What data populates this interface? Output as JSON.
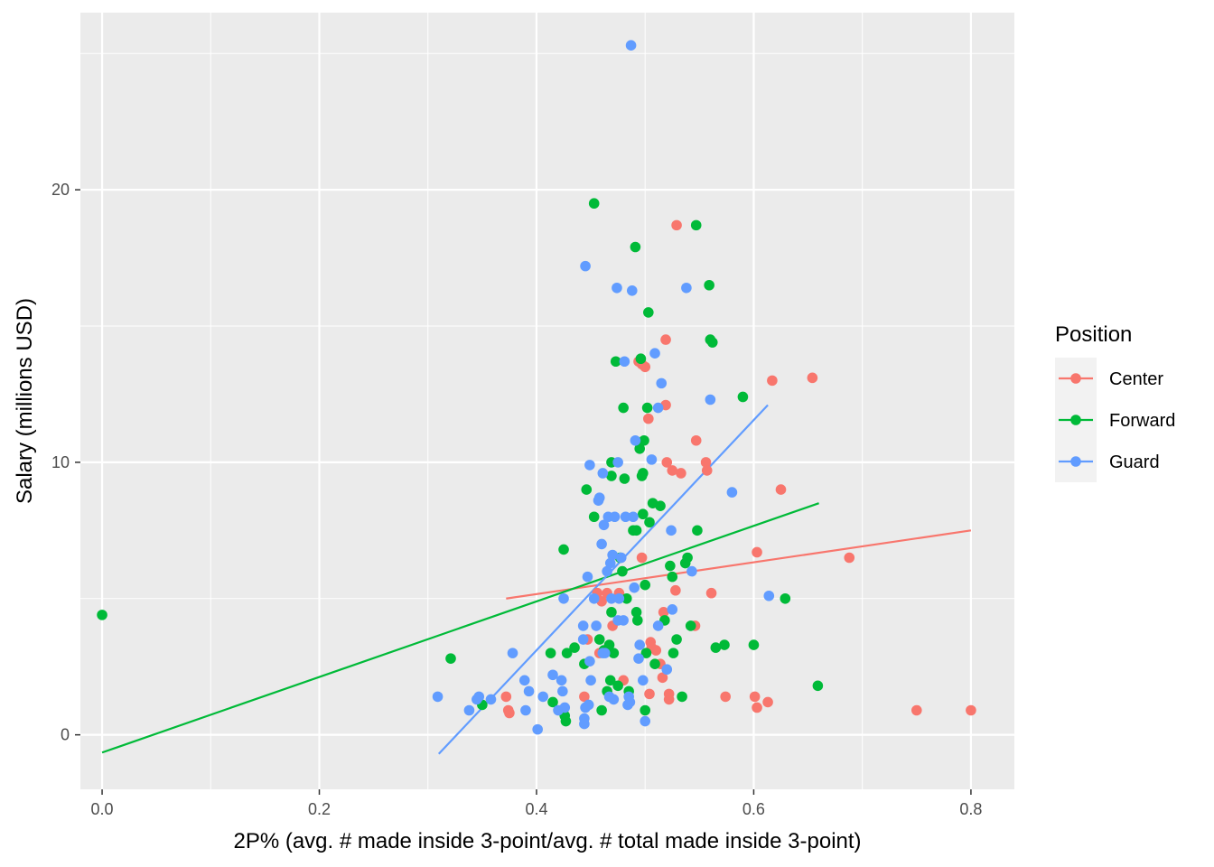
{
  "chart_data": {
    "type": "scatter",
    "title": "",
    "xlabel": "2P% (avg. # made inside 3-point/avg. # total made inside 3-point)",
    "ylabel": "Salary (millions USD)",
    "xlim": [
      -0.02,
      0.84
    ],
    "ylim": [
      -2,
      26.5
    ],
    "x_ticks": [
      0.0,
      0.2,
      0.4,
      0.6,
      0.8
    ],
    "x_tick_labels": [
      "0.0",
      "0.2",
      "0.4",
      "0.6",
      "0.8"
    ],
    "y_ticks": [
      0,
      10,
      20
    ],
    "y_tick_labels": [
      "0",
      "10",
      "20"
    ],
    "grid": true,
    "legend": {
      "title": "Position",
      "placement": "right"
    },
    "series": [
      {
        "name": "Center",
        "color": "#F8766D",
        "trend": [
          [
            0.372,
            5.0
          ],
          [
            0.8,
            7.5
          ]
        ],
        "points": [
          [
            0.372,
            1.4
          ],
          [
            0.374,
            0.9
          ],
          [
            0.375,
            0.8
          ],
          [
            0.422,
            0.9
          ],
          [
            0.444,
            1.4
          ],
          [
            0.447,
            3.5
          ],
          [
            0.456,
            5.2
          ],
          [
            0.458,
            3.0
          ],
          [
            0.46,
            4.9
          ],
          [
            0.465,
            5.2
          ],
          [
            0.47,
            4.0
          ],
          [
            0.476,
            5.2
          ],
          [
            0.48,
            2.0
          ],
          [
            0.494,
            13.7
          ],
          [
            0.497,
            13.6
          ],
          [
            0.497,
            6.5
          ],
          [
            0.5,
            13.5
          ],
          [
            0.503,
            11.6
          ],
          [
            0.505,
            3.4
          ],
          [
            0.506,
            3.2
          ],
          [
            0.51,
            3.1
          ],
          [
            0.514,
            2.6
          ],
          [
            0.516,
            2.1
          ],
          [
            0.517,
            4.5
          ],
          [
            0.519,
            14.5
          ],
          [
            0.519,
            12.1
          ],
          [
            0.52,
            10.0
          ],
          [
            0.522,
            1.5
          ],
          [
            0.522,
            1.3
          ],
          [
            0.525,
            9.7
          ],
          [
            0.528,
            5.3
          ],
          [
            0.529,
            18.7
          ],
          [
            0.533,
            9.6
          ],
          [
            0.546,
            4.0
          ],
          [
            0.547,
            10.8
          ],
          [
            0.556,
            10.0
          ],
          [
            0.557,
            9.7
          ],
          [
            0.561,
            5.2
          ],
          [
            0.574,
            1.4
          ],
          [
            0.601,
            1.4
          ],
          [
            0.603,
            1.0
          ],
          [
            0.603,
            6.7
          ],
          [
            0.613,
            1.2
          ],
          [
            0.617,
            13.0
          ],
          [
            0.625,
            9.0
          ],
          [
            0.654,
            13.1
          ],
          [
            0.688,
            6.5
          ],
          [
            0.75,
            0.9
          ],
          [
            0.8,
            0.9
          ],
          [
            0.504,
            1.5
          ]
        ]
      },
      {
        "name": "Forward",
        "color": "#00BA38",
        "trend": [
          [
            0.0,
            -0.65
          ],
          [
            0.66,
            8.5
          ]
        ],
        "points": [
          [
            0.0,
            4.4
          ],
          [
            0.321,
            2.8
          ],
          [
            0.35,
            1.1
          ],
          [
            0.413,
            3.0
          ],
          [
            0.415,
            1.2
          ],
          [
            0.425,
            6.8
          ],
          [
            0.426,
            0.7
          ],
          [
            0.427,
            0.5
          ],
          [
            0.428,
            3.0
          ],
          [
            0.435,
            3.2
          ],
          [
            0.444,
            2.6
          ],
          [
            0.446,
            9.0
          ],
          [
            0.453,
            19.5
          ],
          [
            0.453,
            8.0
          ],
          [
            0.458,
            3.5
          ],
          [
            0.46,
            0.9
          ],
          [
            0.462,
            3.1
          ],
          [
            0.465,
            1.6
          ],
          [
            0.467,
            3.3
          ],
          [
            0.468,
            2.0
          ],
          [
            0.469,
            9.5
          ],
          [
            0.469,
            10.0
          ],
          [
            0.469,
            4.5
          ],
          [
            0.471,
            3.0
          ],
          [
            0.473,
            13.7
          ],
          [
            0.475,
            1.8
          ],
          [
            0.477,
            6.5
          ],
          [
            0.479,
            6.0
          ],
          [
            0.48,
            12.0
          ],
          [
            0.481,
            9.4
          ],
          [
            0.483,
            5.0
          ],
          [
            0.485,
            1.6
          ],
          [
            0.489,
            7.5
          ],
          [
            0.491,
            17.9
          ],
          [
            0.492,
            7.5
          ],
          [
            0.492,
            4.5
          ],
          [
            0.493,
            4.2
          ],
          [
            0.495,
            10.5
          ],
          [
            0.496,
            13.8
          ],
          [
            0.497,
            9.5
          ],
          [
            0.498,
            8.1
          ],
          [
            0.498,
            9.6
          ],
          [
            0.499,
            10.8
          ],
          [
            0.5,
            0.9
          ],
          [
            0.5,
            5.5
          ],
          [
            0.501,
            3.0
          ],
          [
            0.502,
            12.0
          ],
          [
            0.503,
            15.5
          ],
          [
            0.504,
            7.8
          ],
          [
            0.507,
            8.5
          ],
          [
            0.509,
            2.6
          ],
          [
            0.514,
            8.4
          ],
          [
            0.518,
            4.2
          ],
          [
            0.523,
            6.2
          ],
          [
            0.525,
            5.8
          ],
          [
            0.526,
            3.0
          ],
          [
            0.529,
            3.5
          ],
          [
            0.534,
            1.4
          ],
          [
            0.537,
            6.3
          ],
          [
            0.539,
            6.5
          ],
          [
            0.542,
            4.0
          ],
          [
            0.547,
            18.7
          ],
          [
            0.548,
            7.5
          ],
          [
            0.559,
            16.5
          ],
          [
            0.56,
            14.5
          ],
          [
            0.562,
            14.4
          ],
          [
            0.565,
            3.2
          ],
          [
            0.573,
            3.3
          ],
          [
            0.59,
            12.4
          ],
          [
            0.6,
            3.3
          ],
          [
            0.629,
            5.0
          ],
          [
            0.659,
            1.8
          ]
        ]
      },
      {
        "name": "Guard",
        "color": "#619CFF",
        "trend": [
          [
            0.31,
            -0.7
          ],
          [
            0.613,
            12.1
          ]
        ],
        "points": [
          [
            0.309,
            1.4
          ],
          [
            0.338,
            0.9
          ],
          [
            0.345,
            1.3
          ],
          [
            0.347,
            1.4
          ],
          [
            0.358,
            1.3
          ],
          [
            0.378,
            3.0
          ],
          [
            0.389,
            2.0
          ],
          [
            0.39,
            0.9
          ],
          [
            0.393,
            1.6
          ],
          [
            0.401,
            0.2
          ],
          [
            0.406,
            1.4
          ],
          [
            0.415,
            2.2
          ],
          [
            0.42,
            0.9
          ],
          [
            0.423,
            2.0
          ],
          [
            0.424,
            1.6
          ],
          [
            0.425,
            5.0
          ],
          [
            0.426,
            1.0
          ],
          [
            0.443,
            3.5
          ],
          [
            0.443,
            4.0
          ],
          [
            0.444,
            0.6
          ],
          [
            0.444,
            0.4
          ],
          [
            0.445,
            1.0
          ],
          [
            0.445,
            17.2
          ],
          [
            0.447,
            5.8
          ],
          [
            0.448,
            1.1
          ],
          [
            0.449,
            2.7
          ],
          [
            0.449,
            9.9
          ],
          [
            0.45,
            2.0
          ],
          [
            0.453,
            5.0
          ],
          [
            0.455,
            4.0
          ],
          [
            0.457,
            8.6
          ],
          [
            0.458,
            8.7
          ],
          [
            0.46,
            7.0
          ],
          [
            0.461,
            3.0
          ],
          [
            0.461,
            9.6
          ],
          [
            0.462,
            7.7
          ],
          [
            0.463,
            3.0
          ],
          [
            0.465,
            6.0
          ],
          [
            0.466,
            8.0
          ],
          [
            0.467,
            1.4
          ],
          [
            0.468,
            6.3
          ],
          [
            0.469,
            5.0
          ],
          [
            0.47,
            6.6
          ],
          [
            0.471,
            1.3
          ],
          [
            0.472,
            8.0
          ],
          [
            0.474,
            16.4
          ],
          [
            0.475,
            10.0
          ],
          [
            0.475,
            4.2
          ],
          [
            0.476,
            5.0
          ],
          [
            0.478,
            6.5
          ],
          [
            0.48,
            4.2
          ],
          [
            0.481,
            13.7
          ],
          [
            0.482,
            8.0
          ],
          [
            0.484,
            1.1
          ],
          [
            0.485,
            1.4
          ],
          [
            0.486,
            1.2
          ],
          [
            0.487,
            25.3
          ],
          [
            0.488,
            16.3
          ],
          [
            0.489,
            8.0
          ],
          [
            0.49,
            5.4
          ],
          [
            0.491,
            10.8
          ],
          [
            0.494,
            2.8
          ],
          [
            0.495,
            3.3
          ],
          [
            0.498,
            2.0
          ],
          [
            0.5,
            0.5
          ],
          [
            0.506,
            10.1
          ],
          [
            0.509,
            14.0
          ],
          [
            0.512,
            12.0
          ],
          [
            0.512,
            4.0
          ],
          [
            0.515,
            12.9
          ],
          [
            0.52,
            2.4
          ],
          [
            0.524,
            7.5
          ],
          [
            0.525,
            4.6
          ],
          [
            0.538,
            16.4
          ],
          [
            0.543,
            6.0
          ],
          [
            0.56,
            12.3
          ],
          [
            0.58,
            8.9
          ],
          [
            0.614,
            5.1
          ]
        ]
      }
    ]
  }
}
